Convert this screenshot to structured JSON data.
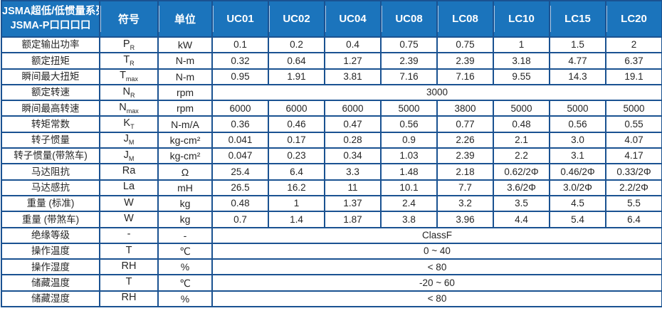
{
  "table": {
    "title_line1": "JSMA超低/低惯量系列",
    "title_line2": "JSMA-P口口口口",
    "symbol_header": "符号",
    "unit_header": "单位",
    "models": [
      "UC01",
      "UC02",
      "UC04",
      "UC08",
      "LC08",
      "LC10",
      "LC15",
      "LC20"
    ],
    "rows": [
      {
        "label": "额定输出功率",
        "symbol": "P",
        "symbol_sub": "R",
        "unit": "kW",
        "values": [
          "0.1",
          "0.2",
          "0.4",
          "0.75",
          "0.75",
          "1",
          "1.5",
          "2"
        ]
      },
      {
        "label": "额定扭矩",
        "symbol": "T",
        "symbol_sub": "R",
        "unit": "N-m",
        "values": [
          "0.32",
          "0.64",
          "1.27",
          "2.39",
          "2.39",
          "3.18",
          "4.77",
          "6.37"
        ]
      },
      {
        "label": "瞬间最大扭矩",
        "symbol": "T",
        "symbol_sub": "max",
        "unit": "N-m",
        "values": [
          "0.95",
          "1.91",
          "3.81",
          "7.16",
          "7.16",
          "9.55",
          "14.3",
          "19.1"
        ]
      },
      {
        "label": "额定转速",
        "symbol": "N",
        "symbol_sub": "R",
        "unit": "rpm",
        "merged": "3000"
      },
      {
        "label": "瞬间最高转速",
        "symbol": "N",
        "symbol_sub": "max",
        "unit": "rpm",
        "values": [
          "6000",
          "6000",
          "6000",
          "5000",
          "3800",
          "5000",
          "5000",
          "5000"
        ]
      },
      {
        "label": "转矩常数",
        "symbol": "K",
        "symbol_sub": "T",
        "unit": "N-m/A",
        "values": [
          "0.36",
          "0.46",
          "0.47",
          "0.56",
          "0.77",
          "0.48",
          "0.56",
          "0.55"
        ]
      },
      {
        "label": "转子惯量",
        "symbol": "J",
        "symbol_sub": "M",
        "unit": "kg-cm²",
        "values": [
          "0.041",
          "0.17",
          "0.28",
          "0.9",
          "2.26",
          "2.1",
          "3.0",
          "4.07"
        ]
      },
      {
        "label": "转子惯量(带煞车)",
        "symbol": "J",
        "symbol_sub": "M",
        "unit": "kg-cm²",
        "values": [
          "0.047",
          "0.23",
          "0.34",
          "1.03",
          "2.39",
          "2.2",
          "3.1",
          "4.17"
        ]
      },
      {
        "label": "马达阻抗",
        "symbol": "Ra",
        "symbol_sub": "",
        "unit": "Ω",
        "values": [
          "25.4",
          "6.4",
          "3.3",
          "1.48",
          "2.18",
          "0.62/2Φ",
          "0.46/2Φ",
          "0.33/2Φ"
        ]
      },
      {
        "label": "马达感抗",
        "symbol": "La",
        "symbol_sub": "",
        "unit": "mH",
        "values": [
          "26.5",
          "16.2",
          "11",
          "10.1",
          "7.7",
          "3.6/2Φ",
          "3.0/2Φ",
          "2.2/2Φ"
        ]
      },
      {
        "label": "重量 (标准)",
        "symbol": "W",
        "symbol_sub": "",
        "unit": "kg",
        "values": [
          "0.48",
          "1",
          "1.37",
          "2.4",
          "3.2",
          "3.5",
          "4.5",
          "5.5"
        ]
      },
      {
        "label": "重量 (带煞车)",
        "symbol": "W",
        "symbol_sub": "",
        "unit": "kg",
        "values": [
          "0.7",
          "1.4",
          "1.87",
          "3.8",
          "3.96",
          "4.4",
          "5.4",
          "6.4"
        ]
      },
      {
        "label": "绝缘等级",
        "symbol": "-",
        "symbol_sub": "",
        "unit": "-",
        "merged": "ClassF"
      },
      {
        "label": "操作温度",
        "symbol": "T",
        "symbol_sub": "",
        "unit": "℃",
        "merged": "0 ~ 40"
      },
      {
        "label": "操作湿度",
        "symbol": "RH",
        "symbol_sub": "",
        "unit": "%",
        "merged": "< 80"
      },
      {
        "label": "储藏温度",
        "symbol": "T",
        "symbol_sub": "",
        "unit": "℃",
        "merged": "-20 ~ 60"
      },
      {
        "label": "储藏湿度",
        "symbol": "RH",
        "symbol_sub": "",
        "unit": "%",
        "merged": "< 80"
      }
    ],
    "colors": {
      "header_bg": "#1b74bc",
      "header_text": "#ffffff",
      "grid_border": "#1a5291",
      "header_divider": "#aecbe8",
      "body_text": "#262626"
    }
  }
}
